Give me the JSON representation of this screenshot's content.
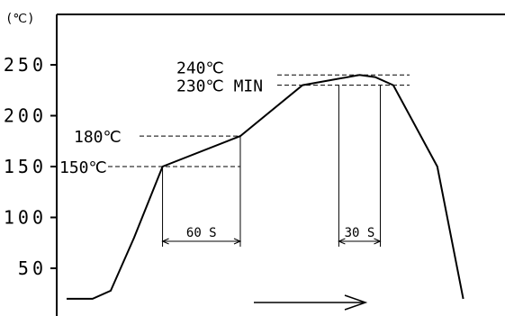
{
  "chart_data": {
    "type": "line",
    "title": "",
    "ylabel": "(℃)",
    "ylim": [
      0,
      280
    ],
    "yticks": [
      {
        "value": 250,
        "label": "250"
      },
      {
        "value": 200,
        "label": "200"
      },
      {
        "value": 150,
        "label": "150"
      },
      {
        "value": 100,
        "label": "100"
      },
      {
        "value": 50,
        "label": "50"
      }
    ],
    "profile_x": [
      0,
      10,
      17,
      26,
      37,
      67,
      91,
      113,
      113,
      119,
      126,
      143,
      153
    ],
    "profile_y": [
      20,
      20,
      28,
      80,
      150,
      180,
      230,
      240,
      240,
      238,
      230,
      150,
      20
    ],
    "annotations": {
      "t180": {
        "label": "180℃",
        "value": 180
      },
      "t150": {
        "label": "150℃",
        "value": 150
      },
      "t240": {
        "label": "240℃",
        "value": 240
      },
      "t230": {
        "label": "230℃ MIN",
        "value": 230
      },
      "span60": {
        "label": "60 S",
        "from": 37,
        "to": 67
      },
      "span30": {
        "label": "30 S",
        "from": 105,
        "to": 121
      }
    }
  }
}
